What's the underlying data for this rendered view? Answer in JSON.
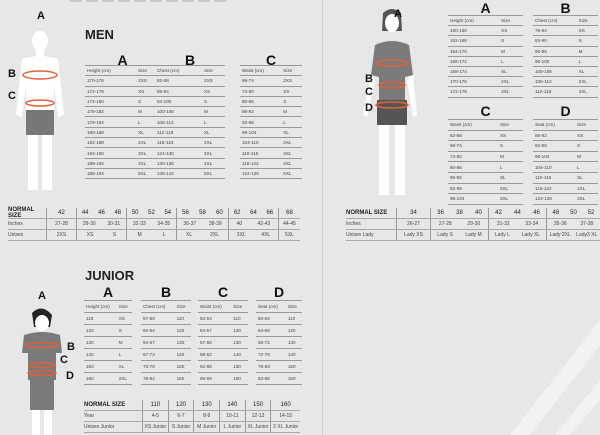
{
  "men": {
    "title": "MEN",
    "figure_letters": [
      "A",
      "B",
      "C"
    ],
    "tables": [
      {
        "letter": "A",
        "headers": [
          "Height (cm)",
          "Size"
        ],
        "rows": [
          [
            "170-176",
            "2XS"
          ],
          [
            "172-178",
            "XS"
          ],
          [
            "174-180",
            "S"
          ],
          [
            "176-182",
            "M"
          ],
          [
            "178-184",
            "L"
          ],
          [
            "180-186",
            "XL"
          ],
          [
            "182-188",
            "2XL"
          ],
          [
            "184-190",
            "3XL"
          ],
          [
            "186-192",
            "4XL"
          ],
          [
            "188-194",
            "5XL"
          ]
        ]
      },
      {
        "letter": "B",
        "headers": [
          "Chest (cm)",
          "Size"
        ],
        "rows": [
          [
            "82-88",
            "2XS"
          ],
          [
            "88-94",
            "XS"
          ],
          [
            "94-100",
            "S"
          ],
          [
            "100-106",
            "M"
          ],
          [
            "106-112",
            "L"
          ],
          [
            "112-118",
            "XL"
          ],
          [
            "118-124",
            "2XL"
          ],
          [
            "124-130",
            "3XL"
          ],
          [
            "130-136",
            "4XL"
          ],
          [
            "136-142",
            "5XL"
          ]
        ]
      },
      {
        "letter": "C",
        "headers": [
          "Waist (cm)",
          "Size"
        ],
        "rows": [
          [
            "68-74",
            "2XS"
          ],
          [
            "74-80",
            "XS"
          ],
          [
            "80-86",
            "S"
          ],
          [
            "86-92",
            "M"
          ],
          [
            "92-98",
            "L"
          ],
          [
            "98-104",
            "XL"
          ],
          [
            "104-110",
            "2XL"
          ],
          [
            "110-116",
            "3XL"
          ],
          [
            "116-122",
            "4XL"
          ],
          [
            "122-128",
            "5XL"
          ]
        ]
      }
    ],
    "normal": {
      "labels": [
        "NORMAL SIZE",
        "Inches",
        "Unisex"
      ],
      "groups": [
        {
          "sizes": [
            "42"
          ],
          "inches": [
            "27-28"
          ],
          "unisex": [
            "2XS"
          ]
        },
        {
          "sizes": [
            "44",
            "46",
            "48"
          ],
          "inches": [
            "29-30",
            "30-31"
          ],
          "unisex": [
            "XS",
            "S"
          ]
        },
        {
          "sizes": [
            "50",
            "52",
            "54"
          ],
          "inches": [
            "32-33",
            "34-35"
          ],
          "unisex": [
            "M",
            "L"
          ]
        },
        {
          "sizes": [
            "56",
            "58",
            "60"
          ],
          "inches": [
            "36-37",
            "38-39"
          ],
          "unisex": [
            "XL",
            "2XL"
          ]
        },
        {
          "sizes": [
            "62",
            "64",
            "66"
          ],
          "inches": [
            "40",
            "42-43"
          ],
          "unisex": [
            "3XL",
            "4XL"
          ]
        },
        {
          "sizes": [
            "68"
          ],
          "inches": [
            "44-45"
          ],
          "unisex": [
            "5XL"
          ]
        }
      ]
    }
  },
  "women": {
    "figure_letters": [
      "A",
      "B",
      "C",
      "D"
    ],
    "tables": [
      {
        "letter": "A",
        "headers": [
          "Height (cm)",
          "Size"
        ],
        "rows": [
          [
            "160-166",
            "XS"
          ],
          [
            "162-168",
            "S"
          ],
          [
            "164-170",
            "M"
          ],
          [
            "166-172",
            "L"
          ],
          [
            "168-174",
            "XL"
          ],
          [
            "170-176",
            "2XL"
          ],
          [
            "172-178",
            "3XL"
          ]
        ]
      },
      {
        "letter": "B",
        "headers": [
          "Chest (cm)",
          "Size"
        ],
        "rows": [
          [
            "78-84",
            "XS"
          ],
          [
            "84-90",
            "S"
          ],
          [
            "90-96",
            "M"
          ],
          [
            "96-100",
            "L"
          ],
          [
            "100-106",
            "XL"
          ],
          [
            "106-112",
            "2XL"
          ],
          [
            "112-118",
            "3XL"
          ]
        ]
      },
      {
        "letter": "C",
        "headers": [
          "Waist (cm)",
          "Size"
        ],
        "rows": [
          [
            "62-68",
            "XS"
          ],
          [
            "68-74",
            "S"
          ],
          [
            "74-80",
            "M"
          ],
          [
            "80-86",
            "L"
          ],
          [
            "86-92",
            "XL"
          ],
          [
            "92-98",
            "2XL"
          ],
          [
            "98-104",
            "3XL"
          ]
        ]
      },
      {
        "letter": "D",
        "headers": [
          "Seat (cm)",
          "Size"
        ],
        "rows": [
          [
            "86-92",
            "XS"
          ],
          [
            "92-98",
            "S"
          ],
          [
            "98-104",
            "M"
          ],
          [
            "104-110",
            "L"
          ],
          [
            "110-116",
            "XL"
          ],
          [
            "116-122",
            "2XL"
          ],
          [
            "122-128",
            "3XL"
          ]
        ]
      }
    ],
    "normal": {
      "labels": [
        "NORMAL SIZE",
        "Inches",
        "Unisex Lady"
      ],
      "groups": [
        {
          "sizes": [
            "34"
          ],
          "inches": [
            "26-27"
          ],
          "unisex": [
            "Lady XS"
          ]
        },
        {
          "sizes": [
            "36",
            "38",
            "40"
          ],
          "inches": [
            "27-28",
            "29-30"
          ],
          "unisex": [
            "Lady S",
            "Lady M"
          ]
        },
        {
          "sizes": [
            "42",
            "44",
            "46"
          ],
          "inches": [
            "31-32",
            "33-34"
          ],
          "unisex": [
            "Lady L",
            "Lady XL"
          ]
        },
        {
          "sizes": [
            "48",
            "50",
            "52"
          ],
          "inches": [
            "35-36",
            "37-38"
          ],
          "unisex": [
            "Lady 2XL",
            "Lady3 XL"
          ]
        }
      ]
    }
  },
  "junior": {
    "title": "JUNIOR",
    "figure_letters": [
      "A",
      "B",
      "C",
      "D"
    ],
    "tables": [
      {
        "letter": "A",
        "headers": [
          "Height (cm)",
          "Size"
        ],
        "rows": [
          [
            "110",
            "XS"
          ],
          [
            "120",
            "S"
          ],
          [
            "130",
            "M"
          ],
          [
            "140",
            "L"
          ],
          [
            "150",
            "XL"
          ],
          [
            "160",
            "2XL"
          ]
        ]
      },
      {
        "letter": "B",
        "headers": [
          "Chest (cm)",
          "Size"
        ],
        "rows": [
          [
            "57-60",
            "110"
          ],
          [
            "60-64",
            "120"
          ],
          [
            "64-67",
            "130"
          ],
          [
            "67-73",
            "140"
          ],
          [
            "73-78",
            "150"
          ],
          [
            "78-82",
            "160"
          ]
        ]
      },
      {
        "letter": "C",
        "headers": [
          "Waist (cm)",
          "Size"
        ],
        "rows": [
          [
            "53-54",
            "110"
          ],
          [
            "54-57",
            "120"
          ],
          [
            "57-58",
            "130"
          ],
          [
            "58-62",
            "140"
          ],
          [
            "62-65",
            "150"
          ],
          [
            "65-69",
            "160"
          ]
        ]
      },
      {
        "letter": "D",
        "headers": [
          "Seat (cm)",
          "Size"
        ],
        "rows": [
          [
            "60-64",
            "110"
          ],
          [
            "64-68",
            "120"
          ],
          [
            "68-72",
            "130"
          ],
          [
            "72-78",
            "140"
          ],
          [
            "78-83",
            "150"
          ],
          [
            "83-88",
            "160"
          ]
        ]
      }
    ],
    "normal": {
      "labels": [
        "NORMAL SIZE",
        "Year",
        "Unisex Junior"
      ],
      "groups": [
        {
          "sizes": [
            "110"
          ],
          "inches": [
            "4-5"
          ],
          "unisex": [
            "XS Junior"
          ]
        },
        {
          "sizes": [
            "120"
          ],
          "inches": [
            "6-7"
          ],
          "unisex": [
            "S Junior"
          ]
        },
        {
          "sizes": [
            "130"
          ],
          "inches": [
            "8-9"
          ],
          "unisex": [
            "M Junior"
          ]
        },
        {
          "sizes": [
            "140"
          ],
          "inches": [
            "10-11"
          ],
          "unisex": [
            "L Junior"
          ]
        },
        {
          "sizes": [
            "150"
          ],
          "inches": [
            "12-13"
          ],
          "unisex": [
            "XL Junior"
          ]
        },
        {
          "sizes": [
            "160"
          ],
          "inches": [
            "14-15"
          ],
          "unisex": [
            "2 XL Junior"
          ]
        }
      ]
    }
  },
  "colors": {
    "background": "#e7e7e7",
    "measure_line": "#e0603a",
    "figure_gray": "#7a7a7a"
  }
}
